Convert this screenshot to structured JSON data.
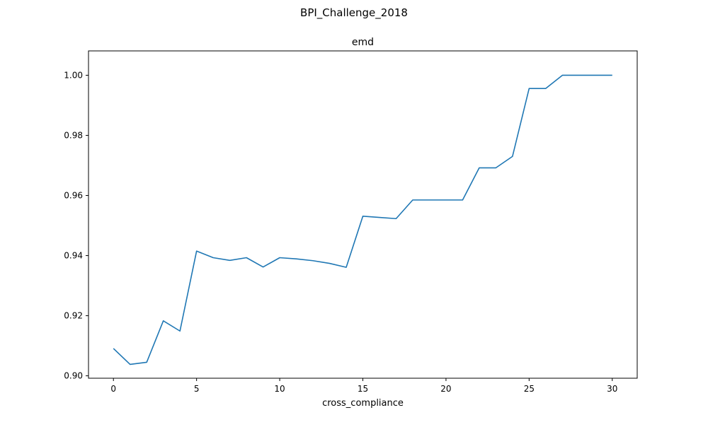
{
  "figure": {
    "suptitle": "BPI_Challenge_2018"
  },
  "chart_data": {
    "type": "line",
    "title": "emd",
    "xlabel": "cross_compliance",
    "ylabel": "",
    "xlim": [
      -1.5,
      31.5
    ],
    "ylim": [
      0.8992,
      1.0081
    ],
    "x_ticks": [
      0,
      5,
      10,
      15,
      20,
      25,
      30
    ],
    "y_ticks": [
      0.9,
      0.92,
      0.94,
      0.96,
      0.98,
      1.0
    ],
    "x_tick_labels": [
      "0",
      "5",
      "10",
      "15",
      "20",
      "25",
      "30"
    ],
    "y_tick_labels": [
      "0.90",
      "0.92",
      "0.94",
      "0.96",
      "0.98",
      "1.00"
    ],
    "grid": false,
    "series": [
      {
        "color": "#1f77b4",
        "x": [
          0,
          1,
          2,
          3,
          4,
          5,
          6,
          7,
          8,
          9,
          10,
          11,
          12,
          13,
          14,
          15,
          16,
          17,
          18,
          19,
          20,
          21,
          22,
          23,
          24,
          25,
          26,
          27,
          28,
          29,
          30
        ],
        "values": [
          0.9091,
          0.9038,
          0.9045,
          0.9183,
          0.9149,
          0.9415,
          0.9393,
          0.9384,
          0.9393,
          0.9362,
          0.9393,
          0.9389,
          0.9383,
          0.9374,
          0.9361,
          0.9531,
          0.9527,
          0.9523,
          0.9585,
          0.9585,
          0.9585,
          0.9585,
          0.9692,
          0.9692,
          0.973,
          0.9956,
          0.9956,
          1.0,
          1.0,
          1.0,
          1.0
        ]
      }
    ]
  }
}
